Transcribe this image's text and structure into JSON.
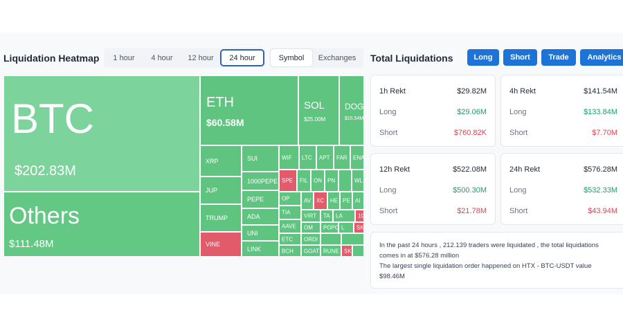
{
  "heatmap": {
    "title": "Liquidation Heatmap",
    "time_tabs": [
      "1 hour",
      "4 hour",
      "12 hour",
      "24 hour"
    ],
    "active_time": "24 hour",
    "view_tabs": [
      "Symbol",
      "Exchanges"
    ],
    "active_view": "Symbol",
    "tiles": {
      "btc": {
        "name": "BTC",
        "value": "$202.83M"
      },
      "others": {
        "name": "Others",
        "value": "$111.48M"
      },
      "eth": {
        "name": "ETH",
        "value": "$60.58M"
      },
      "sol": {
        "name": "SOL",
        "value": "$25.00M"
      },
      "doge": {
        "name": "DOG",
        "value": "$15.54M"
      },
      "xrp": "XRP",
      "sui": "SUI",
      "jup": "JUP",
      "pepe1000": "1000PEPE",
      "trump": "TRUMP",
      "pepe": "PEPE",
      "ada": "ADA",
      "uni": "UNI",
      "vine": "VINE",
      "link": "LINK",
      "wif": "WIF",
      "ltc": "LTC",
      "apt": "APT",
      "far": "FAR",
      "ena": "ENA",
      "spe": "SPE",
      "fil": "FIL",
      "on": "ON",
      "pn": "PN",
      "wl": "WL",
      "op": "OP",
      "av": "AV",
      "xc": "XC",
      "he": "HE",
      "pe": "PE",
      "ai": "AI",
      "tia": "TIA",
      "virt": "VIRT",
      "ta": "TA",
      "la": "LA",
      "m10": "10",
      "aave": "AAVE",
      "om": "OM",
      "pop": "POPC",
      "l1": "L",
      "sk": "SK",
      "etc": "ETC",
      "ordi": "ORDI",
      "bch": "BCH",
      "goat": "GOAT",
      "rune": "RUNE",
      "sk2": "SK"
    }
  },
  "totals": {
    "title": "Total Liquidations",
    "buttons": [
      "Long",
      "Short",
      "Trade",
      "Analytics"
    ],
    "cards": [
      {
        "period": "1h Rekt",
        "total": "$29.82M",
        "long_label": "Long",
        "long": "$29.06M",
        "short_label": "Short",
        "short": "$760.82K"
      },
      {
        "period": "4h Rekt",
        "total": "$141.54M",
        "long_label": "Long",
        "long": "$133.84M",
        "short_label": "Short",
        "short": "$7.70M"
      },
      {
        "period": "12h Rekt",
        "total": "$522.08M",
        "long_label": "Long",
        "long": "$500.30M",
        "short_label": "Short",
        "short": "$21.78M"
      },
      {
        "period": "24h Rekt",
        "total": "$576.28M",
        "long_label": "Long",
        "long": "$532.33M",
        "short_label": "Short",
        "short": "$43.94M"
      }
    ],
    "summary": {
      "line1": "In the past 24 hours , 212.139 traders were liquidated , the total liquidations",
      "line2": "comes in at $576.28 million",
      "line3": "The largest single liquidation order happened on HTX - BTC-USDT value",
      "line4": "$98.46M"
    }
  },
  "colors": {
    "accent": "#1d74d6",
    "long_tile": "#5ec47f",
    "short_tile": "#e15b6a",
    "positive": "#1f9d6b",
    "negative": "#d94552"
  }
}
